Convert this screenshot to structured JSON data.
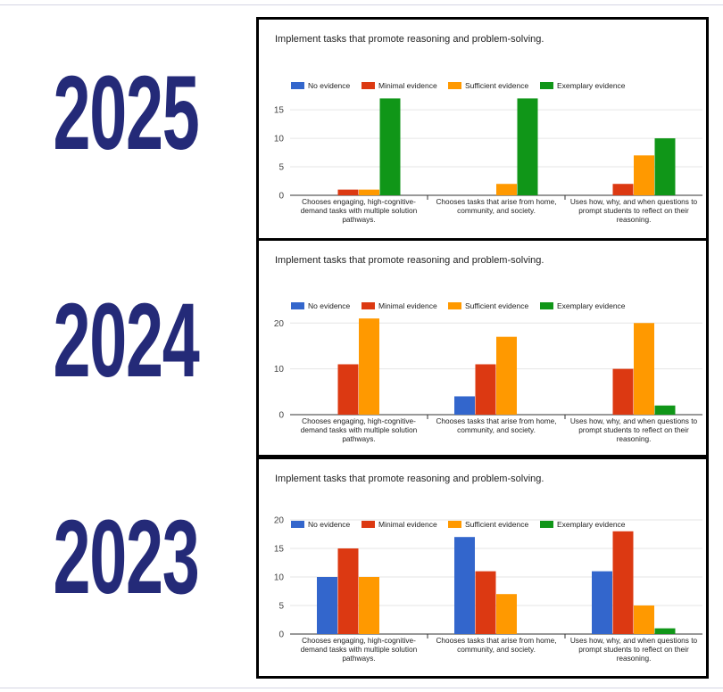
{
  "years": [
    "2025",
    "2024",
    "2023"
  ],
  "colors": {
    "series": [
      "#3366cc",
      "#dc3912",
      "#ff9900",
      "#109618"
    ],
    "year_text": "#242a78",
    "grid": "#e6e6e6"
  },
  "chart_data": [
    {
      "type": "bar",
      "year": "2025",
      "title": "Implement tasks that promote reasoning and problem-solving.",
      "legend_position": "top",
      "grid": true,
      "ylim": [
        0,
        18
      ],
      "yticks": [
        0,
        5,
        10,
        15
      ],
      "categories": [
        [
          "Chooses engaging, high-cognitive-",
          "demand tasks with multiple solution",
          "pathways."
        ],
        [
          "Chooses tasks that arise from home,",
          "community, and society."
        ],
        [
          "Uses how, why, and when questions to",
          "prompt students to reflect on their",
          "reasoning."
        ]
      ],
      "series": [
        {
          "name": "No evidence",
          "values": [
            0,
            0,
            0
          ]
        },
        {
          "name": "Minimal evidence",
          "values": [
            1,
            0,
            2
          ]
        },
        {
          "name": "Sufficient evidence",
          "values": [
            1,
            2,
            7
          ]
        },
        {
          "name": "Exemplary evidence",
          "values": [
            17,
            17,
            10
          ]
        }
      ]
    },
    {
      "type": "bar",
      "year": "2024",
      "title": "Implement tasks that promote reasoning and problem-solving.",
      "legend_position": "top",
      "grid": true,
      "ylim": [
        0,
        22
      ],
      "yticks": [
        0,
        10,
        20
      ],
      "categories": [
        [
          "Chooses engaging, high-cognitive-",
          "demand tasks with multiple solution",
          "pathways."
        ],
        [
          "Chooses tasks that arise from home,",
          "community, and society."
        ],
        [
          "Uses how, why, and when questions to",
          "prompt students to reflect on their",
          "reasoning."
        ]
      ],
      "series": [
        {
          "name": "No evidence",
          "values": [
            0,
            4,
            0
          ]
        },
        {
          "name": "Minimal evidence",
          "values": [
            11,
            11,
            10
          ]
        },
        {
          "name": "Sufficient evidence",
          "values": [
            21,
            17,
            20
          ]
        },
        {
          "name": "Exemplary evidence",
          "values": [
            0,
            0,
            2
          ]
        }
      ]
    },
    {
      "type": "bar",
      "year": "2023",
      "title": "Implement tasks that promote reasoning and problem-solving.",
      "legend_position": "top",
      "grid": true,
      "ylim": [
        0,
        20
      ],
      "yticks": [
        0,
        5,
        10,
        15,
        20
      ],
      "categories": [
        [
          "Chooses engaging, high-cognitive-",
          "demand tasks with multiple solution",
          "pathways."
        ],
        [
          "Chooses tasks that arise from home,",
          "community, and society."
        ],
        [
          "Uses how, why, and when questions to",
          "prompt students to reflect on their",
          "reasoning."
        ]
      ],
      "series": [
        {
          "name": "No evidence",
          "values": [
            10,
            17,
            11
          ]
        },
        {
          "name": "Minimal evidence",
          "values": [
            15,
            11,
            18
          ]
        },
        {
          "name": "Sufficient evidence",
          "values": [
            10,
            7,
            5
          ]
        },
        {
          "name": "Exemplary evidence",
          "values": [
            0,
            0,
            1
          ]
        }
      ]
    }
  ]
}
